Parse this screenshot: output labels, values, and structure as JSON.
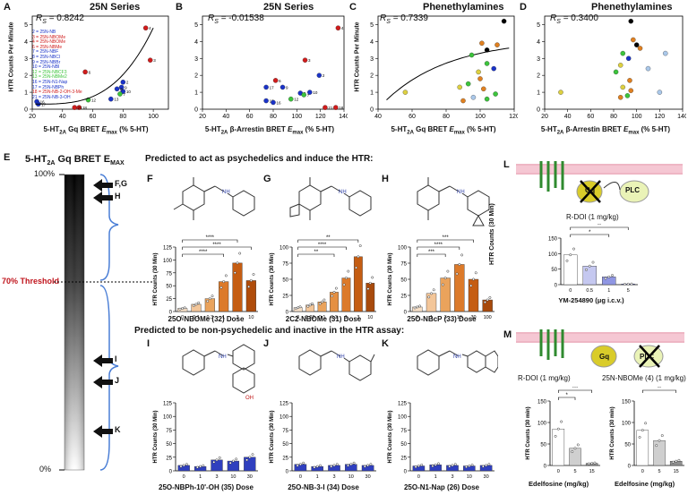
{
  "panels": {
    "A": {
      "letter": "A",
      "title": "25N Series",
      "rs": "R",
      "rs_sub": "S",
      "rs_val": "= 0.8242",
      "xlabel": "5-HT",
      "xlabel_sub": "2A",
      "xlabel_rest": " Gq BRET ",
      "emax": "E",
      "emax_sub": "max",
      "xlabel_tail": " (% 5-HT)",
      "ylabel": "HTR Counts Per Minute",
      "legend": [
        {
          "text": "2 = 25N-NB",
          "color": "#1a33c8"
        },
        {
          "text": "3 = 25N-NBOMe",
          "color": "#d01c1c"
        },
        {
          "text": "4 = 25N-NBOMe",
          "color": "#d01c1c"
        },
        {
          "text": "6 = 25N-NBMe",
          "color": "#d01c1c"
        },
        {
          "text": "7 = 25N-NBF",
          "color": "#1a33c8"
        },
        {
          "text": "8 = 25N-NBCl",
          "color": "#1a33c8"
        },
        {
          "text": "9 = 25N-NBBr",
          "color": "#1a33c8"
        },
        {
          "text": "10 = 25N-NBI",
          "color": "#1a33c8"
        },
        {
          "text": "12 = 25N-NBCF3",
          "color": "#3cc43c"
        },
        {
          "text": "13 = 25N-NBMe2",
          "color": "#3cc43c"
        },
        {
          "text": "16 = 25N-N1-Nap",
          "color": "#1a33c8"
        },
        {
          "text": "17 = 25N-NBPh",
          "color": "#1a33c8"
        },
        {
          "text": "18 = 25N-NB-2-OH-3-Me",
          "color": "#d01c1c"
        },
        {
          "text": "21 = 25N-NB-3-OH",
          "color": "#1a33c8"
        }
      ]
    },
    "B": {
      "letter": "B",
      "title": "25N Series",
      "rs": "R",
      "rs_sub": "S",
      "rs_val": "= -0.01538",
      "xlabel": "5-HT",
      "xlabel_sub": "2A",
      "xlabel_rest": " β-Arrestin BRET ",
      "emax": "E",
      "emax_sub": "max",
      "xlabel_tail": " (% 5-HT)"
    },
    "C": {
      "letter": "C",
      "title": "Phenethylamines",
      "rs": "R",
      "rs_sub": "S",
      "rs_val": "= 0.7339",
      "xlabel": "5-HT",
      "xlabel_sub": "2A",
      "xlabel_rest": " Gq BRET ",
      "emax": "E",
      "emax_sub": "max",
      "xlabel_tail": " (% 5-HT)",
      "ylabel": "HTR Counts Per Minute"
    },
    "D": {
      "letter": "D",
      "title": "Phenethylamines",
      "rs": "R",
      "rs_sub": "S",
      "rs_val": "= 0.3400",
      "xlabel": "5-HT",
      "xlabel_sub": "2A",
      "xlabel_rest": " β-Arrestin BRET ",
      "emax": "E",
      "emax_sub": "max",
      "xlabel_tail": " (% 5-HT)"
    },
    "E": {
      "letter": "E",
      "title": "5-HT",
      "title_sub": "2A",
      "title_rest": " Gq BRET E",
      "title_sub2": "MAX",
      "pct100": "100%",
      "pct0": "0%",
      "threshold": "70% Threshold",
      "arrows": [
        "F,G",
        "H",
        "I",
        "J",
        "K"
      ]
    },
    "psy_heading": "Predicted to act as psychedelics and induce the HTR:",
    "nonpsy_heading": "Predicted to be non-psychedelic and inactive in the HTR assay:",
    "F": {
      "letter": "F",
      "xlabel": "25O-NBOMe (32) Dose",
      "ticks": [
        "0",
        "0.1",
        "0.3",
        "1",
        "3",
        "10"
      ]
    },
    "G": {
      "letter": "G",
      "xlabel": "2C2-NBOMe (31) Dose",
      "ticks": [
        "0",
        "0.03",
        "0.1",
        "0.3",
        "1",
        "3",
        "10"
      ]
    },
    "H": {
      "letter": "H",
      "xlabel": "25O-NBcP (33) Dose",
      "ticks": [
        "0",
        "1",
        "3",
        "10",
        "30",
        "100"
      ]
    },
    "I": {
      "letter": "I",
      "xlabel": "25O-NBPh-10'-OH (35) Dose",
      "ticks": [
        "0",
        "1",
        "3",
        "10",
        "30"
      ]
    },
    "J": {
      "letter": "J",
      "xlabel": "25O-NB-3-I (34) Dose",
      "ticks": [
        "0",
        "1",
        "3",
        "10",
        "30"
      ]
    },
    "K": {
      "letter": "K",
      "xlabel": "25O-N1-Nap (26) Dose",
      "ticks": [
        "0",
        "1",
        "3",
        "10",
        "30"
      ]
    },
    "htr_ylabel": "HTR Counts (30 Min)",
    "stars": {
      "s4": "****",
      "s2": "**",
      "s3": "***",
      "s1": "*"
    },
    "L": {
      "letter": "L",
      "plc": "PLC",
      "gq": "Gq",
      "drug": "R-DOI (1 mg/kg)",
      "xlabel": "YM-254890 (μg i.c.v.)",
      "ticks": [
        "0",
        "0.5",
        "1",
        "5"
      ],
      "ylabel": "HTR Counts (30 Min)"
    },
    "M": {
      "letter": "M",
      "gq": "Gq",
      "plc": "PLC",
      "drug1": "R-DOI (1 mg/kg)",
      "drug2": "25N-NBOMe (4) (1 mg/kg)",
      "xlabel": "Edelfosine (mg/kg)",
      "ticks": [
        "0",
        "5",
        "15"
      ],
      "ylabel": "HTR Counts (30 min)"
    }
  },
  "chart_data": [
    {
      "type": "scatter",
      "panel": "A",
      "xlim": [
        20,
        110
      ],
      "ylim": [
        0,
        5.5
      ],
      "xticks": [
        20,
        40,
        60,
        80,
        100
      ],
      "yticks": [
        0,
        1,
        2,
        3,
        4,
        5
      ],
      "points": [
        [
          95,
          4.8,
          "4"
        ],
        [
          98,
          2.9,
          "3"
        ],
        [
          55,
          2.2,
          "6"
        ],
        [
          80,
          1.6,
          "2"
        ],
        [
          79,
          1.3,
          "9"
        ],
        [
          80,
          1.05,
          "10"
        ],
        [
          76,
          1.2,
          "8"
        ],
        [
          78,
          0.9,
          "7"
        ],
        [
          57,
          0.55,
          "12"
        ],
        [
          72,
          0.6,
          "13"
        ],
        [
          23,
          0.45,
          "16"
        ],
        [
          51,
          0.1,
          "18"
        ],
        [
          48,
          0.1,
          "21"
        ],
        [
          24,
          0.3,
          "17"
        ]
      ]
    },
    {
      "type": "scatter",
      "panel": "B",
      "xlim": [
        20,
        140
      ],
      "ylim": [
        0,
        5.5
      ],
      "xticks": [
        20,
        40,
        60,
        80,
        100,
        120,
        140
      ],
      "yticks": [
        0,
        1,
        2,
        3,
        4,
        5
      ],
      "points": [
        [
          135,
          4.8,
          "4"
        ],
        [
          107,
          2.9,
          "3"
        ],
        [
          82,
          1.7,
          "6"
        ],
        [
          119,
          2.0,
          "2"
        ],
        [
          88,
          1.3,
          "9"
        ],
        [
          111,
          1.0,
          "10"
        ],
        [
          103,
          0.95,
          "8"
        ],
        [
          106,
          0.85,
          "7"
        ],
        [
          95,
          0.6,
          "12"
        ],
        [
          74,
          0.5,
          "13"
        ],
        [
          80,
          0.4,
          "16"
        ],
        [
          124,
          0.1,
          "21"
        ],
        [
          133,
          0.1,
          "18"
        ],
        [
          74,
          1.3,
          "17"
        ]
      ]
    },
    {
      "type": "scatter",
      "panel": "C",
      "xlim": [
        40,
        120
      ],
      "ylim": [
        0,
        5.5
      ],
      "xticks": [
        40,
        60,
        80,
        100,
        120
      ],
      "yticks": [
        0,
        1,
        2,
        3,
        4,
        5
      ]
    },
    {
      "type": "scatter",
      "panel": "D",
      "xlim": [
        20,
        140
      ],
      "ylim": [
        0,
        5.5
      ],
      "xticks": [
        20,
        40,
        60,
        80,
        100,
        120,
        140
      ],
      "yticks": [
        0,
        1,
        2,
        3,
        4,
        5
      ]
    },
    {
      "type": "bar",
      "panel": "F",
      "ylim": [
        0,
        125
      ],
      "yticks": [
        0,
        25,
        50,
        75,
        100,
        125
      ],
      "values": [
        6,
        14,
        25,
        58,
        94,
        60
      ]
    },
    {
      "type": "bar",
      "panel": "G",
      "ylim": [
        0,
        100
      ],
      "yticks": [
        0,
        25,
        50,
        75,
        100
      ],
      "values": [
        6,
        10,
        15,
        30,
        52,
        85,
        44
      ]
    },
    {
      "type": "bar",
      "panel": "H",
      "ylim": [
        0,
        100
      ],
      "yticks": [
        0,
        25,
        50,
        75,
        100
      ],
      "values": [
        7,
        28,
        52,
        73,
        50,
        18
      ]
    },
    {
      "type": "bar",
      "panel": "I",
      "ylim": [
        0,
        125
      ],
      "yticks": [
        0,
        25,
        50,
        75,
        100,
        125
      ],
      "values": [
        10,
        8,
        20,
        18,
        25
      ]
    },
    {
      "type": "bar",
      "panel": "J",
      "ylim": [
        0,
        125
      ],
      "yticks": [
        0,
        25,
        50,
        75,
        100,
        125
      ],
      "values": [
        12,
        8,
        10,
        12,
        10
      ]
    },
    {
      "type": "bar",
      "panel": "K",
      "ylim": [
        0,
        125
      ],
      "yticks": [
        0,
        25,
        50,
        75,
        100,
        125
      ],
      "values": [
        9,
        11,
        10,
        9,
        10
      ]
    },
    {
      "type": "bar",
      "panel": "L",
      "ylim": [
        0,
        150
      ],
      "yticks": [
        0,
        50,
        100,
        150
      ],
      "values": [
        96,
        60,
        25,
        2
      ]
    },
    {
      "type": "bar",
      "panel": "M1",
      "ylim": [
        0,
        150
      ],
      "yticks": [
        0,
        50,
        100,
        150
      ],
      "values": [
        85,
        40,
        5
      ]
    },
    {
      "type": "bar",
      "panel": "M2",
      "ylim": [
        0,
        150
      ],
      "yticks": [
        0,
        50,
        100,
        150
      ],
      "values": [
        82,
        58,
        10
      ]
    }
  ]
}
